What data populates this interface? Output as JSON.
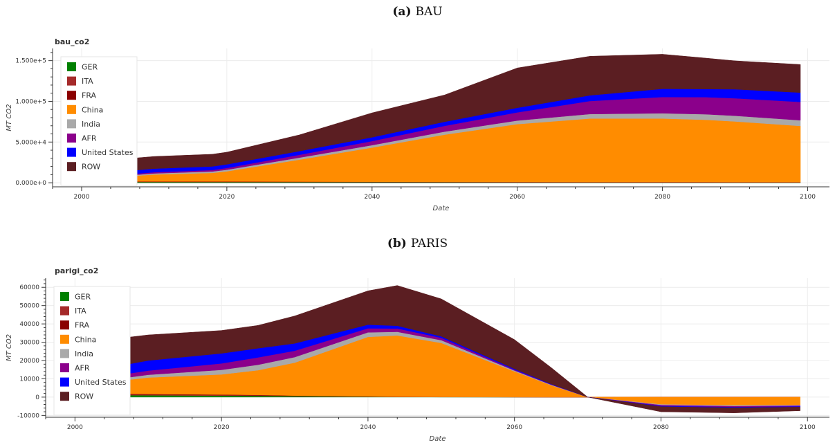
{
  "captions": [
    {
      "letter": "(a)",
      "text": "BAU"
    },
    {
      "letter": "(b)",
      "text": "PARIS"
    }
  ],
  "colors": {
    "GER": "#008000",
    "ITA": "#a52a2a",
    "FRA": "#8b0000",
    "China": "#ff8c00",
    "India": "#a9a9a9",
    "AFR": "#8b008b",
    "United States": "#0000ff",
    "ROW": "#5b1e22"
  },
  "chart_data": [
    {
      "type": "area",
      "stacked": true,
      "title": "bau_co2",
      "xlabel": "Date",
      "ylabel": "MT CO2",
      "xlim": [
        1996,
        2103
      ],
      "ylim": [
        -5000,
        165000
      ],
      "xticks": [
        2000,
        2020,
        2040,
        2060,
        2080,
        2100
      ],
      "yticks": [
        0,
        50000,
        100000,
        150000
      ],
      "ytick_labels": [
        "0.000e+0",
        "5.000e+4",
        "1.000e+5",
        "1.500e+5"
      ],
      "grid": true,
      "legend_position": "top-left",
      "x": [
        2000,
        2006,
        2010,
        2018,
        2020,
        2030,
        2040,
        2050,
        2060,
        2070,
        2080,
        2086,
        2090,
        2099
      ],
      "series": [
        {
          "name": "GER",
          "values": [
            900,
            900,
            850,
            800,
            780,
            700,
            600,
            500,
            450,
            400,
            380,
            370,
            360,
            350
          ]
        },
        {
          "name": "ITA",
          "values": [
            450,
            450,
            420,
            400,
            390,
            350,
            300,
            280,
            260,
            250,
            240,
            235,
            230,
            220
          ]
        },
        {
          "name": "FRA",
          "values": [
            400,
            400,
            380,
            360,
            350,
            320,
            300,
            280,
            260,
            250,
            240,
            235,
            230,
            220
          ]
        },
        {
          "name": "China",
          "values": [
            1000,
            6000,
            8500,
            10500,
            12500,
            27000,
            42000,
            58000,
            71000,
            78000,
            78000,
            76500,
            74500,
            69000
          ]
        },
        {
          "name": "India",
          "values": [
            800,
            1000,
            1300,
            1800,
            2000,
            2500,
            3000,
            3800,
            4500,
            5500,
            6500,
            6800,
            7000,
            7000
          ]
        },
        {
          "name": "AFR",
          "values": [
            800,
            1300,
            1500,
            1800,
            2200,
            3500,
            5000,
            7000,
            10000,
            16000,
            20000,
            21000,
            21500,
            22500
          ]
        },
        {
          "name": "United States",
          "values": [
            4000,
            4300,
            4400,
            4400,
            4400,
            4500,
            4700,
            5000,
            5600,
            7000,
            10000,
            10000,
            11000,
            11500
          ]
        },
        {
          "name": "ROW",
          "values": [
            8000,
            15000,
            15000,
            15000,
            15000,
            20000,
            30000,
            33000,
            49000,
            48000,
            42500,
            38000,
            35000,
            34500
          ]
        }
      ]
    },
    {
      "type": "area",
      "stacked": true,
      "title": "parigi_co2",
      "xlabel": "Date",
      "ylabel": "MT CO2",
      "xlim": [
        1996,
        2103
      ],
      "ylim": [
        -11000,
        65000
      ],
      "xticks": [
        2000,
        2020,
        2040,
        2060,
        2080,
        2100
      ],
      "yticks": [
        -10000,
        0,
        10000,
        20000,
        30000,
        40000,
        50000,
        60000
      ],
      "ytick_labels": [
        "-10000",
        "0",
        "10000",
        "20000",
        "30000",
        "40000",
        "50000",
        "60000"
      ],
      "grid": true,
      "legend_position": "top-left",
      "x": [
        2000,
        2006,
        2010,
        2020,
        2025,
        2030,
        2040,
        2044,
        2050,
        2060,
        2065,
        2070,
        2080,
        2090,
        2099
      ],
      "series": [
        {
          "name": "GER",
          "values": [
            1200,
            1100,
            1000,
            800,
            700,
            500,
            200,
            100,
            50,
            20,
            10,
            0,
            -10,
            -10,
            -10
          ]
        },
        {
          "name": "ITA",
          "values": [
            500,
            450,
            400,
            350,
            300,
            200,
            100,
            50,
            30,
            10,
            5,
            0,
            -10,
            -10,
            -10
          ]
        },
        {
          "name": "FRA",
          "values": [
            400,
            350,
            300,
            250,
            200,
            150,
            80,
            50,
            30,
            10,
            5,
            0,
            -10,
            -10,
            -10
          ]
        },
        {
          "name": "China",
          "values": [
            4000,
            7000,
            9000,
            11000,
            13500,
            18000,
            32500,
            33500,
            29500,
            14000,
            6500,
            0,
            -4000,
            -4500,
            -4300
          ]
        },
        {
          "name": "India",
          "values": [
            1000,
            1200,
            1500,
            2500,
            3000,
            3000,
            2500,
            2000,
            1500,
            500,
            250,
            0,
            -400,
            -500,
            -400
          ]
        },
        {
          "name": "AFR",
          "values": [
            1500,
            2000,
            2300,
            3500,
            4000,
            3500,
            2200,
            1800,
            1300,
            400,
            200,
            0,
            -500,
            -500,
            -400
          ]
        },
        {
          "name": "United States",
          "values": [
            4500,
            5000,
            5500,
            5500,
            5000,
            4000,
            2000,
            1500,
            800,
            500,
            200,
            0,
            -300,
            -300,
            -300
          ]
        },
        {
          "name": "ROW",
          "values": [
            17000,
            15000,
            14000,
            12500,
            12500,
            15000,
            18500,
            22000,
            20500,
            16000,
            9000,
            0,
            -2800,
            -2800,
            -2000
          ]
        }
      ]
    }
  ]
}
